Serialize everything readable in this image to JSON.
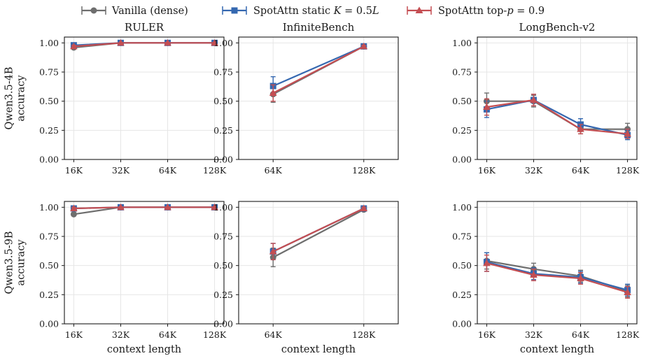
{
  "legend": [
    {
      "label": "Vanilla (dense)",
      "color": "#6e6e6e",
      "marker": "circle"
    },
    {
      "label": "SpotAttn static K = 0.5L",
      "color": "#3568b0",
      "marker": "square"
    },
    {
      "label": "SpotAttn top-p = 0.9",
      "color": "#c44e52",
      "marker": "triangle"
    }
  ],
  "colors": {
    "grid": "#e6e6e6",
    "axis": "#1a1a1a"
  },
  "columns": [
    "RULER",
    "InfiniteBench",
    "LongBench-v2"
  ],
  "rows": [
    "Qwen3.5-4B\naccuracy",
    "Qwen3.5-9B\naccuracy"
  ],
  "xlabel": "context length",
  "chart_data": [
    {
      "type": "line",
      "title": "RULER",
      "row": 0,
      "col": 0,
      "ylabel": "Qwen3.5-4B accuracy",
      "xlabel": "",
      "categories": [
        "16K",
        "32K",
        "64K",
        "128K"
      ],
      "ylim": [
        0,
        1.05
      ],
      "yticks": [
        0,
        0.25,
        0.5,
        0.75,
        1.0
      ],
      "grid": true,
      "series": [
        {
          "name": "Vanilla (dense)",
          "values": [
            0.96,
            1.0,
            1.0,
            1.0
          ],
          "errors": [
            0.01,
            0.0,
            0.0,
            0.0
          ]
        },
        {
          "name": "SpotAttn static K = 0.5L",
          "values": [
            0.98,
            1.0,
            1.0,
            1.0
          ],
          "errors": [
            0.01,
            0.0,
            0.0,
            0.0
          ]
        },
        {
          "name": "SpotAttn top-p = 0.9",
          "values": [
            0.97,
            1.0,
            1.0,
            1.0
          ],
          "errors": [
            0.01,
            0.0,
            0.0,
            0.0
          ]
        }
      ]
    },
    {
      "type": "line",
      "title": "InfiniteBench",
      "row": 0,
      "col": 1,
      "ylabel": "",
      "xlabel": "",
      "categories": [
        "64K",
        "128K"
      ],
      "ylim": [
        0,
        1.05
      ],
      "yticks": [
        0,
        0.25,
        0.5,
        0.75,
        1.0
      ],
      "grid": true,
      "series": [
        {
          "name": "Vanilla (dense)",
          "values": [
            0.56,
            0.97
          ],
          "errors": [
            0.07,
            0.01
          ]
        },
        {
          "name": "SpotAttn static K = 0.5L",
          "values": [
            0.63,
            0.97
          ],
          "errors": [
            0.08,
            0.01
          ]
        },
        {
          "name": "SpotAttn top-p = 0.9",
          "values": [
            0.57,
            0.97
          ],
          "errors": [
            0.07,
            0.01
          ]
        }
      ]
    },
    {
      "type": "line",
      "title": "LongBench-v2",
      "row": 0,
      "col": 2,
      "ylabel": "",
      "xlabel": "",
      "categories": [
        "16K",
        "32K",
        "64K",
        "128K"
      ],
      "ylim": [
        0,
        1.05
      ],
      "yticks": [
        0,
        0.25,
        0.5,
        0.75,
        1.0
      ],
      "grid": true,
      "series": [
        {
          "name": "Vanilla (dense)",
          "values": [
            0.5,
            0.5,
            0.26,
            0.26
          ],
          "errors": [
            0.07,
            0.05,
            0.04,
            0.05
          ]
        },
        {
          "name": "SpotAttn static K = 0.5L",
          "values": [
            0.43,
            0.51,
            0.3,
            0.21
          ],
          "errors": [
            0.07,
            0.05,
            0.05,
            0.04
          ]
        },
        {
          "name": "SpotAttn top-p = 0.9",
          "values": [
            0.45,
            0.51,
            0.26,
            0.22
          ],
          "errors": [
            0.07,
            0.05,
            0.04,
            0.04
          ]
        }
      ]
    },
    {
      "type": "line",
      "title": "",
      "row": 1,
      "col": 0,
      "ylabel": "Qwen3.5-9B accuracy",
      "xlabel": "context length",
      "categories": [
        "16K",
        "32K",
        "64K",
        "128K"
      ],
      "ylim": [
        0,
        1.05
      ],
      "yticks": [
        0,
        0.25,
        0.5,
        0.75,
        1.0
      ],
      "grid": true,
      "series": [
        {
          "name": "Vanilla (dense)",
          "values": [
            0.94,
            1.0,
            1.0,
            1.0
          ],
          "errors": [
            0.01,
            0.0,
            0.0,
            0.0
          ]
        },
        {
          "name": "SpotAttn static K = 0.5L",
          "values": [
            0.99,
            1.0,
            1.0,
            1.0
          ],
          "errors": [
            0.01,
            0.0,
            0.0,
            0.0
          ]
        },
        {
          "name": "SpotAttn top-p = 0.9",
          "values": [
            0.99,
            1.0,
            1.0,
            1.0
          ],
          "errors": [
            0.01,
            0.0,
            0.0,
            0.0
          ]
        }
      ]
    },
    {
      "type": "line",
      "title": "",
      "row": 1,
      "col": 1,
      "ylabel": "",
      "xlabel": "context length",
      "categories": [
        "64K",
        "128K"
      ],
      "ylim": [
        0,
        1.05
      ],
      "yticks": [
        0,
        0.25,
        0.5,
        0.75,
        1.0
      ],
      "grid": true,
      "series": [
        {
          "name": "Vanilla (dense)",
          "values": [
            0.57,
            0.98
          ],
          "errors": [
            0.08,
            0.01
          ]
        },
        {
          "name": "SpotAttn static K = 0.5L",
          "values": [
            0.62,
            0.99
          ],
          "errors": [
            0.07,
            0.01
          ]
        },
        {
          "name": "SpotAttn top-p = 0.9",
          "values": [
            0.62,
            0.99
          ],
          "errors": [
            0.07,
            0.01
          ]
        }
      ]
    },
    {
      "type": "line",
      "title": "",
      "row": 1,
      "col": 2,
      "ylabel": "",
      "xlabel": "context length",
      "categories": [
        "16K",
        "32K",
        "64K",
        "128K"
      ],
      "ylim": [
        0,
        1.05
      ],
      "yticks": [
        0,
        0.25,
        0.5,
        0.75,
        1.0
      ],
      "grid": true,
      "series": [
        {
          "name": "Vanilla (dense)",
          "values": [
            0.54,
            0.47,
            0.41,
            0.28
          ],
          "errors": [
            0.07,
            0.05,
            0.05,
            0.05
          ]
        },
        {
          "name": "SpotAttn static K = 0.5L",
          "values": [
            0.53,
            0.43,
            0.4,
            0.29
          ],
          "errors": [
            0.08,
            0.05,
            0.05,
            0.05
          ]
        },
        {
          "name": "SpotAttn top-p = 0.9",
          "values": [
            0.52,
            0.42,
            0.39,
            0.27
          ],
          "errors": [
            0.07,
            0.05,
            0.05,
            0.05
          ]
        }
      ]
    }
  ]
}
